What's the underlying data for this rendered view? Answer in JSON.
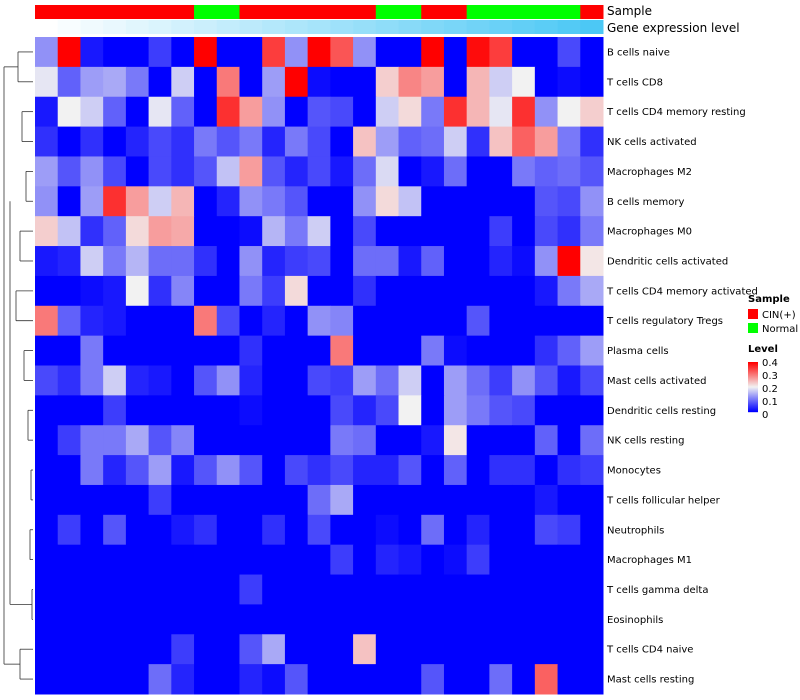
{
  "chart_data": {
    "type": "heatmap",
    "annotations": {
      "sample_label": "Sample",
      "gene_label": "Gene expression level",
      "sample": [
        "CIN(+)",
        "CIN(+)",
        "CIN(+)",
        "CIN(+)",
        "CIN(+)",
        "CIN(+)",
        "CIN(+)",
        "Normal",
        "Normal",
        "CIN(+)",
        "CIN(+)",
        "CIN(+)",
        "CIN(+)",
        "CIN(+)",
        "CIN(+)",
        "Normal",
        "Normal",
        "CIN(+)",
        "CIN(+)",
        "Normal",
        "Normal",
        "Normal",
        "Normal",
        "Normal",
        "CIN(+)"
      ],
      "gene_expression_rank": [
        0,
        1,
        2,
        3,
        4,
        5,
        6,
        7,
        8,
        9,
        10,
        11,
        12,
        13,
        14,
        15,
        16,
        17,
        18,
        19,
        20,
        21,
        22,
        23,
        24
      ]
    },
    "rows": [
      "B cells naive",
      "T cells CD8",
      "T cells CD4 memory resting",
      "NK cells activated",
      "Macrophages M2",
      "B cells memory",
      "Macrophages M0",
      "Dendritic cells activated",
      "T cells CD4 memory activated",
      "T cells regulatory  Tregs",
      "Plasma cells",
      "Mast cells activated",
      "Dendritic cells resting",
      "NK cells resting",
      "Monocytes",
      "T cells follicular helper",
      "Neutrophils",
      "Macrophages M1",
      "T cells gamma delta",
      "Eosinophils",
      "T cells CD4 naive",
      "Mast cells resting"
    ],
    "values": [
      [
        0.12,
        0.4,
        0.02,
        0,
        0,
        0.05,
        0,
        0.4,
        0,
        0,
        0.35,
        0.12,
        0.4,
        0.33,
        0.12,
        0,
        0,
        0.4,
        0,
        0.39,
        0.35,
        0,
        0,
        0.06,
        0
      ],
      [
        0.19,
        0.08,
        0.13,
        0.14,
        0.1,
        0,
        0.17,
        0,
        0.3,
        0,
        0.13,
        0.4,
        0.01,
        0,
        0,
        0.23,
        0.29,
        0.27,
        0,
        0.25,
        0.17,
        0.2,
        0,
        0.01,
        0
      ],
      [
        0.02,
        0.2,
        0.17,
        0.08,
        0,
        0.19,
        0.08,
        0,
        0.36,
        0.27,
        0.12,
        0,
        0.07,
        0.06,
        0,
        0.17,
        0.22,
        0.1,
        0.36,
        0.25,
        0.19,
        0.36,
        0.12,
        0.2,
        0.23
      ],
      [
        0.04,
        0,
        0.04,
        0,
        0.03,
        0.06,
        0.04,
        0.1,
        0.07,
        0.1,
        0.03,
        0.1,
        0.06,
        0,
        0.24,
        0.13,
        0.08,
        0.09,
        0.17,
        0.04,
        0.24,
        0.32,
        0.27,
        0.1,
        0.04
      ],
      [
        0.13,
        0.07,
        0.12,
        0.06,
        0,
        0.06,
        0.04,
        0.07,
        0.16,
        0.27,
        0.07,
        0.03,
        0.06,
        0.02,
        0.09,
        0.18,
        0,
        0.02,
        0.09,
        0,
        0,
        0.1,
        0.08,
        0.09,
        0.07
      ],
      [
        0.12,
        0,
        0.13,
        0.36,
        0.27,
        0.17,
        0.25,
        0,
        0.03,
        0.12,
        0.1,
        0.07,
        0,
        0,
        0.12,
        0.22,
        0.16,
        0,
        0,
        0,
        0,
        0,
        0.07,
        0.06,
        0.12
      ],
      [
        0.23,
        0.16,
        0.04,
        0.08,
        0.22,
        0.27,
        0.26,
        0,
        0,
        0.01,
        0.15,
        0.1,
        0.17,
        0,
        0.06,
        0,
        0,
        0,
        0,
        0,
        0.05,
        0,
        0.06,
        0.04,
        0.1
      ],
      [
        0.02,
        0.03,
        0.17,
        0.1,
        0.15,
        0.09,
        0.09,
        0.04,
        0,
        0.12,
        0.03,
        0.05,
        0.06,
        0,
        0.09,
        0.09,
        0.02,
        0.08,
        0,
        0,
        0.03,
        0.01,
        0.12,
        0.4,
        0.21
      ],
      [
        0,
        0,
        0.01,
        0.02,
        0.2,
        0.04,
        0.11,
        0,
        0,
        0.1,
        0.05,
        0.22,
        0,
        0,
        0.04,
        0,
        0,
        0,
        0,
        0,
        0,
        0,
        0.02,
        0.1,
        0.14
      ],
      [
        0.3,
        0.08,
        0.03,
        0.02,
        0,
        0,
        0,
        0.3,
        0.06,
        0,
        0.03,
        0,
        0.12,
        0.11,
        0,
        0,
        0,
        0,
        0,
        0.07,
        0,
        0,
        0,
        0,
        0
      ],
      [
        0,
        0,
        0.1,
        0,
        0,
        0,
        0,
        0,
        0,
        0.04,
        0,
        0,
        0,
        0.3,
        0,
        0,
        0,
        0.1,
        0.01,
        0,
        0,
        0,
        0.04,
        0.08,
        0.13
      ],
      [
        0.06,
        0.04,
        0.1,
        0.17,
        0.03,
        0.02,
        0,
        0.07,
        0.12,
        0.03,
        0,
        0,
        0.06,
        0.05,
        0.13,
        0.09,
        0.17,
        0,
        0.13,
        0.09,
        0.05,
        0.12,
        0.07,
        0.02,
        0.06
      ],
      [
        0,
        0,
        0,
        0.05,
        0,
        0,
        0,
        0,
        0,
        0.01,
        0,
        0,
        0,
        0.06,
        0.03,
        0.06,
        0.2,
        0,
        0.13,
        0.1,
        0.07,
        0.06,
        0,
        0,
        0
      ],
      [
        0,
        0.05,
        0.1,
        0.1,
        0.14,
        0.07,
        0.11,
        0,
        0,
        0,
        0,
        0,
        0,
        0.1,
        0.09,
        0,
        0,
        0.02,
        0.21,
        0,
        0,
        0,
        0.08,
        0,
        0.09
      ],
      [
        0,
        0,
        0.1,
        0.03,
        0.07,
        0.13,
        0.02,
        0.07,
        0.12,
        0.07,
        0,
        0.06,
        0.04,
        0.06,
        0.03,
        0.03,
        0.07,
        0,
        0.08,
        0,
        0.04,
        0.04,
        0,
        0.04,
        0.05
      ],
      [
        0,
        0,
        0,
        0,
        0,
        0.05,
        0,
        0,
        0,
        0,
        0,
        0,
        0.09,
        0.14,
        0,
        0,
        0,
        0,
        0,
        0,
        0,
        0,
        0.02,
        0,
        0
      ],
      [
        0,
        0.05,
        0,
        0.07,
        0,
        0,
        0.02,
        0.04,
        0,
        0,
        0.04,
        0,
        0.06,
        0,
        0,
        0.01,
        0,
        0.09,
        0,
        0.03,
        0,
        0,
        0.06,
        0.05,
        0
      ],
      [
        0,
        0,
        0,
        0,
        0,
        0,
        0,
        0,
        0,
        0,
        0,
        0,
        0,
        0.05,
        0,
        0.03,
        0.02,
        0,
        0.01,
        0.05,
        0,
        0,
        0,
        0,
        0
      ],
      [
        0,
        0,
        0,
        0,
        0,
        0,
        0,
        0,
        0,
        0.05,
        0,
        0,
        0,
        0,
        0,
        0,
        0,
        0,
        0,
        0,
        0,
        0,
        0,
        0,
        0
      ],
      [
        0,
        0,
        0,
        0,
        0,
        0,
        0,
        0,
        0,
        0,
        0,
        0,
        0,
        0,
        0,
        0,
        0,
        0,
        0,
        0,
        0,
        0,
        0,
        0,
        0
      ],
      [
        0,
        0,
        0,
        0,
        0,
        0,
        0.05,
        0,
        0,
        0.07,
        0.14,
        0,
        0,
        0,
        0.24,
        0,
        0,
        0,
        0,
        0,
        0,
        0,
        0,
        0,
        0
      ],
      [
        0,
        0,
        0,
        0,
        0,
        0.09,
        0.03,
        0,
        0,
        0.03,
        0.01,
        0.07,
        0,
        0,
        0,
        0,
        0,
        0.07,
        0,
        0,
        0.09,
        0,
        0.32,
        0,
        0
      ]
    ],
    "color_scale": {
      "min": 0,
      "mid": 0.2,
      "max": 0.4,
      "low": "#0000ff",
      "midcolor": "#f2f2f2",
      "high": "#ff0000"
    },
    "gene_colors": {
      "low": "#ffffff",
      "high": "#4cc8f5"
    },
    "legend": {
      "sample_title": "Sample",
      "sample_entries": [
        {
          "label": "CIN(+)",
          "color": "#ff0000"
        },
        {
          "label": "Normal",
          "color": "#00ff00"
        }
      ],
      "level_title": "Level",
      "level_ticks": [
        "0.4",
        "0.3",
        "0.2",
        "0.1",
        "0"
      ],
      "placement": "right"
    }
  }
}
